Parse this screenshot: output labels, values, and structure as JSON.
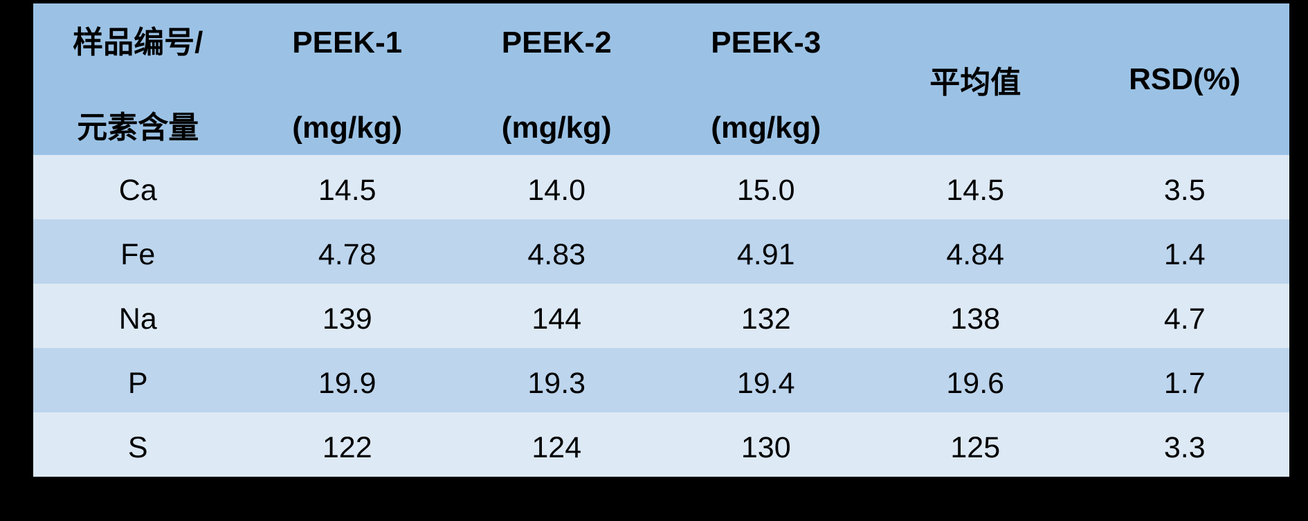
{
  "colors": {
    "background": "#000000",
    "header_bg": "#9BC2E5",
    "row_light": "#DDE9F5",
    "row_medium": "#BDD5ED",
    "text": "#000000"
  },
  "table": {
    "header": {
      "col1": {
        "line1": "样品编号/",
        "line2": "元素含量"
      },
      "peek1": {
        "line1": "PEEK-1",
        "line2": "(mg/kg)"
      },
      "peek2": {
        "line1": "PEEK-2",
        "line2": "(mg/kg)"
      },
      "peek3": {
        "line1": "PEEK-3",
        "line2": "(mg/kg)"
      },
      "mean": "平均值",
      "rsd": "RSD(%)"
    },
    "rows": [
      {
        "element": "Ca",
        "values": [
          "14.5",
          "14.0",
          "15.0",
          "14.5",
          "3.5"
        ]
      },
      {
        "element": "Fe",
        "values": [
          "4.78",
          "4.83",
          "4.91",
          "4.84",
          "1.4"
        ]
      },
      {
        "element": "Na",
        "values": [
          "139",
          "144",
          "132",
          "138",
          "4.7"
        ]
      },
      {
        "element": "P",
        "values": [
          "19.9",
          "19.3",
          "19.4",
          "19.6",
          "1.7"
        ]
      },
      {
        "element": "S",
        "values": [
          "122",
          "124",
          "130",
          "125",
          "3.3"
        ]
      }
    ]
  },
  "chart_data": {
    "type": "table",
    "title": "",
    "columns": [
      "样品编号/元素含量",
      "PEEK-1 (mg/kg)",
      "PEEK-2 (mg/kg)",
      "PEEK-3 (mg/kg)",
      "平均值",
      "RSD(%)"
    ],
    "rows": [
      [
        "Ca",
        14.5,
        14.0,
        15.0,
        14.5,
        3.5
      ],
      [
        "Fe",
        4.78,
        4.83,
        4.91,
        4.84,
        1.4
      ],
      [
        "Na",
        139,
        144,
        132,
        138,
        4.7
      ],
      [
        "P",
        19.9,
        19.3,
        19.4,
        19.6,
        1.7
      ],
      [
        "S",
        122,
        124,
        130,
        125,
        3.3
      ]
    ]
  }
}
